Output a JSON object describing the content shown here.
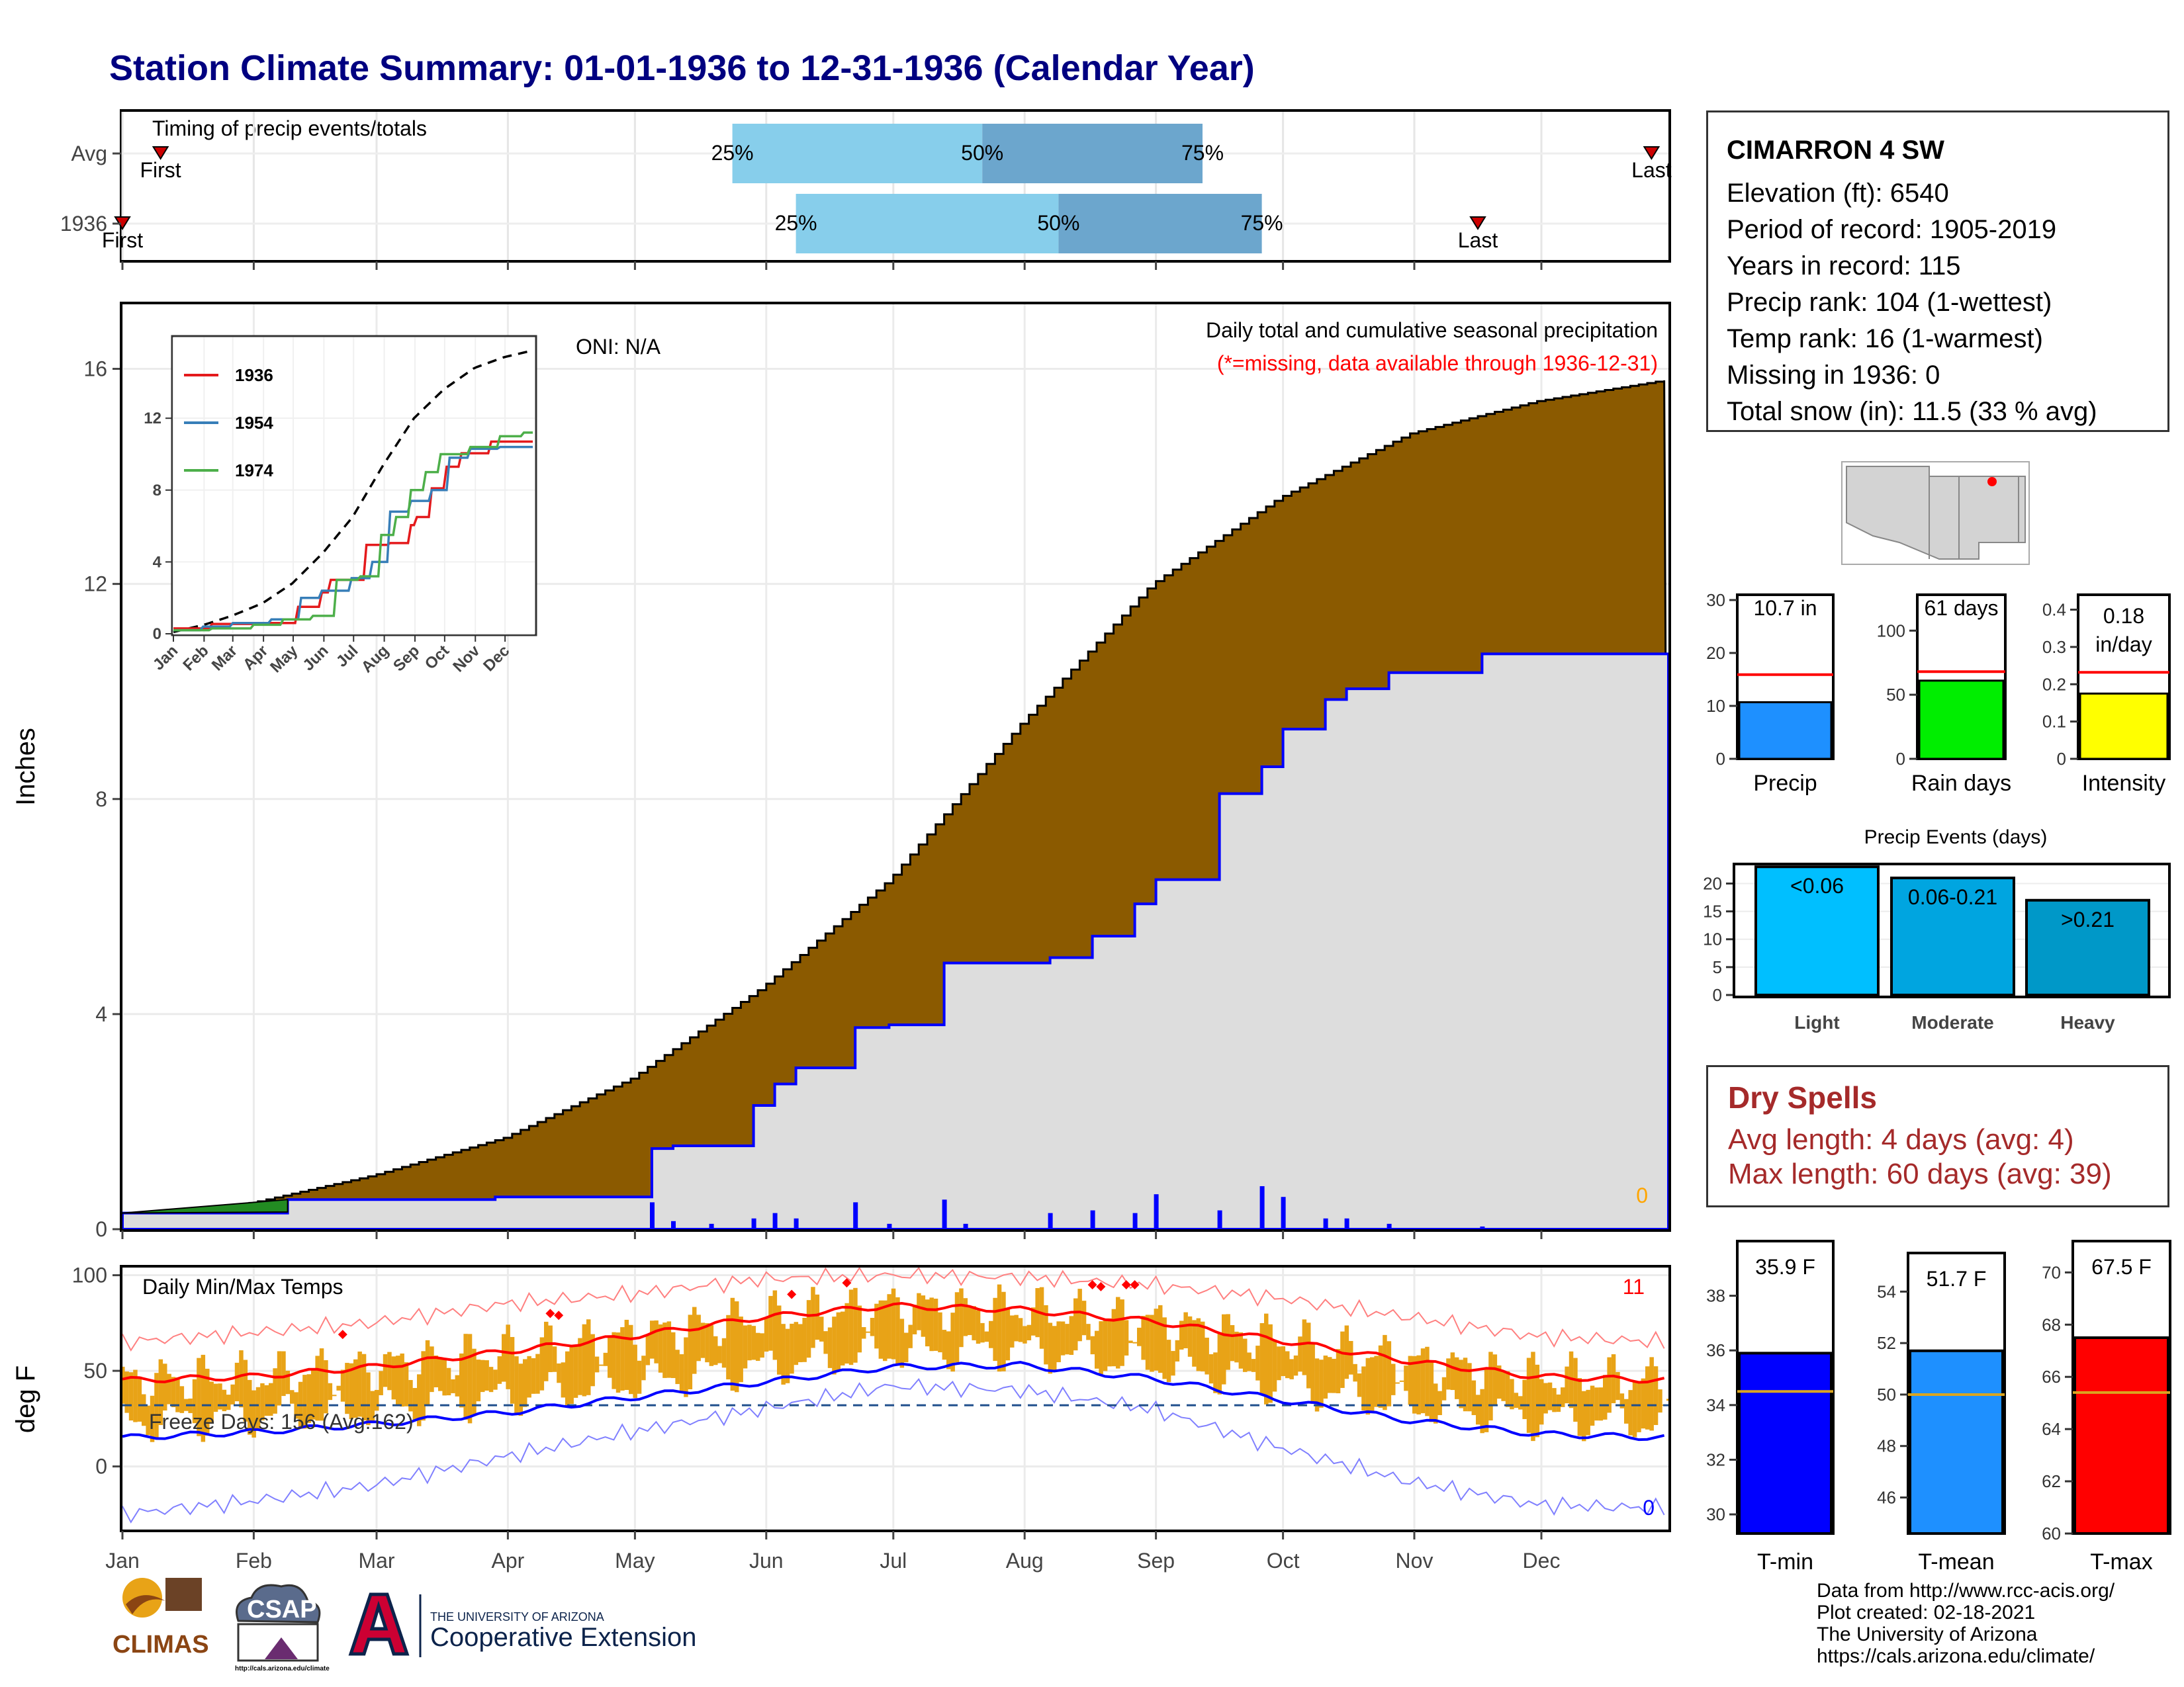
{
  "title": "Station Climate Summary: 01-01-1936 to 12-31-1936 (Calendar Year)",
  "station": {
    "name": "CIMARRON 4 SW",
    "lines": [
      "Elevation (ft): 6540",
      "Period of record: 1905-2019",
      "Years in record: 115",
      "Precip rank: 104 (1-wettest)",
      "Temp rank: 16 (1-warmest)",
      "Missing in 1936: 0",
      "Total snow (in): 11.5 (33 % avg)"
    ]
  },
  "dry_spells": {
    "title": "Dry Spells",
    "avg": "Avg length: 4 days (avg: 4)",
    "max": "Max length: 60 days (avg: 39)"
  },
  "credits": [
    "Data from http://www.rcc-acis.org/",
    "Plot created: 02-18-2021",
    "The University of Arizona",
    "https://cals.arizona.edu/climate/"
  ],
  "logos": {
    "climas": "CLIMAS",
    "csap": "CSAP",
    "csap_url": "http://cals.arizona.edu/climate",
    "ua_top": "THE UNIVERSITY OF ARIZONA",
    "ua_bottom": "Cooperative Extension"
  },
  "colors": {
    "title": "#000080",
    "cumulative_avg": "#8B5A00",
    "cumulative_1936": "#DDDDDD",
    "daily_precip": "#0000FF",
    "timing_light": "#87CEEB",
    "timing_dark": "#6CA6CD",
    "tmax_line": "#FF0000",
    "tmin_line": "#0000FF",
    "temp_bars": "#E8A317",
    "dry_spells": "#A52A2A"
  },
  "chart_data": [
    {
      "id": "timing",
      "type": "bar",
      "title": "Timing of precip events/totals",
      "rows": [
        {
          "label": "Avg",
          "first": "First",
          "last": "Last",
          "first_day": 10,
          "p25_day": 145,
          "p50_day": 204,
          "p75_day": 256,
          "last_day": 362
        },
        {
          "label": "1936",
          "first": "First",
          "last": "Last",
          "first_day": 1,
          "p25_day": 160,
          "p50_day": 222,
          "p75_day": 270,
          "last_day": 321
        }
      ],
      "pct_labels": [
        "25%",
        "50%",
        "75%"
      ]
    },
    {
      "id": "precip",
      "type": "area",
      "title": "Daily total and cumulative seasonal precipitation",
      "subtitle": "(*=missing, data available through 1936-12-31)",
      "oni": "ONI: N/A",
      "ylabel": "Inches",
      "ylim": [
        0,
        17.2
      ],
      "yticks": [
        0,
        4,
        8,
        12,
        16
      ],
      "months": [
        "Jan",
        "Feb",
        "Mar",
        "Apr",
        "May",
        "Jun",
        "Jul",
        "Aug",
        "Sep",
        "Oct",
        "Nov",
        "Dec"
      ],
      "missing_count": "0",
      "avg_cumulative": {
        "day": [
          1,
          32,
          60,
          91,
          121,
          152,
          182,
          213,
          244,
          274,
          305,
          335,
          366
        ],
        "value": [
          0.1,
          0.5,
          1.0,
          1.7,
          2.8,
          4.5,
          6.5,
          9.4,
          12.0,
          13.6,
          14.8,
          15.4,
          15.8
        ]
      },
      "cumulative_1936": {
        "day": [
          1,
          18,
          40,
          60,
          89,
          120,
          126,
          131,
          150,
          155,
          160,
          174,
          182,
          195,
          220,
          230,
          240,
          245,
          260,
          270,
          275,
          285,
          290,
          300,
          322,
          366
        ],
        "value": [
          0.3,
          0.3,
          0.55,
          0.55,
          0.6,
          0.6,
          1.5,
          1.55,
          2.3,
          2.7,
          3.0,
          3.75,
          3.8,
          4.95,
          5.05,
          5.45,
          6.05,
          6.5,
          8.1,
          8.6,
          9.3,
          9.85,
          10.05,
          10.35,
          10.7,
          10.7
        ]
      },
      "daily_1936": [
        {
          "day": 126,
          "value": 0.5
        },
        {
          "day": 131,
          "value": 0.15
        },
        {
          "day": 140,
          "value": 0.1
        },
        {
          "day": 150,
          "value": 0.2
        },
        {
          "day": 155,
          "value": 0.3
        },
        {
          "day": 160,
          "value": 0.2
        },
        {
          "day": 174,
          "value": 0.5
        },
        {
          "day": 182,
          "value": 0.1
        },
        {
          "day": 195,
          "value": 0.55
        },
        {
          "day": 200,
          "value": 0.1
        },
        {
          "day": 220,
          "value": 0.3
        },
        {
          "day": 230,
          "value": 0.35
        },
        {
          "day": 240,
          "value": 0.3
        },
        {
          "day": 245,
          "value": 0.65
        },
        {
          "day": 260,
          "value": 0.35
        },
        {
          "day": 270,
          "value": 0.8
        },
        {
          "day": 275,
          "value": 0.6
        },
        {
          "day": 285,
          "value": 0.2
        },
        {
          "day": 290,
          "value": 0.2
        },
        {
          "day": 300,
          "value": 0.1
        },
        {
          "day": 322,
          "value": 0.05
        }
      ]
    },
    {
      "id": "inset",
      "type": "line",
      "xticks": [
        "Jan",
        "Feb",
        "Mar",
        "Apr",
        "May",
        "Jun",
        "Jul",
        "Aug",
        "Sep",
        "Oct",
        "Nov",
        "Dec"
      ],
      "yticks": [
        0,
        4,
        8,
        12
      ],
      "ylim": [
        0,
        16.5
      ],
      "avg": {
        "day": [
          1,
          32,
          60,
          91,
          121,
          152,
          182,
          213,
          244,
          274,
          305,
          335,
          366
        ],
        "value": [
          0.1,
          0.5,
          1.0,
          1.7,
          2.8,
          4.5,
          6.5,
          9.4,
          12.0,
          13.6,
          14.8,
          15.4,
          15.8
        ]
      },
      "series": [
        {
          "name": "1936",
          "color": "#E41A1C",
          "day": [
            1,
            40,
            89,
            120,
            126,
            150,
            160,
            195,
            220,
            240,
            245,
            260,
            275,
            290,
            322,
            366
          ],
          "value": [
            0.3,
            0.55,
            0.6,
            0.6,
            1.5,
            2.3,
            3.0,
            4.95,
            5.05,
            6.05,
            6.5,
            8.1,
            9.3,
            10.05,
            10.7,
            10.7
          ]
        },
        {
          "name": "1954",
          "color": "#377EB8",
          "day": [
            1,
            30,
            60,
            100,
            130,
            150,
            180,
            200,
            220,
            240,
            260,
            280,
            300,
            330,
            366
          ],
          "value": [
            0.2,
            0.4,
            0.6,
            0.8,
            2.0,
            2.4,
            3.1,
            4.0,
            6.8,
            7.4,
            8.0,
            9.8,
            10.3,
            10.4,
            10.7
          ]
        },
        {
          "name": "1974",
          "color": "#4DAF4A",
          "day": [
            1,
            40,
            80,
            110,
            140,
            165,
            190,
            210,
            225,
            240,
            255,
            270,
            300,
            330,
            355,
            366
          ],
          "value": [
            0.2,
            0.3,
            0.5,
            0.8,
            1.0,
            3.0,
            3.2,
            5.5,
            6.5,
            8.0,
            9.0,
            10.0,
            10.4,
            11.0,
            11.2,
            12.5
          ]
        }
      ]
    },
    {
      "id": "temps",
      "type": "bar",
      "title": "Daily Min/Max Temps",
      "ylabel": "deg F",
      "ylim": [
        -33,
        104
      ],
      "yticks": [
        0,
        50,
        100
      ],
      "freeze_label": "Freeze Days: 156 (Avg:162)",
      "freeze_line": 32,
      "count_hot": "11",
      "count_cold": "0",
      "months": [
        "Jan",
        "Feb",
        "Mar",
        "Apr",
        "May",
        "Jun",
        "Jul",
        "Aug",
        "Sep",
        "Oct",
        "Nov",
        "Dec"
      ],
      "avg_tmax": {
        "day": [
          1,
          32,
          60,
          91,
          121,
          152,
          182,
          213,
          244,
          274,
          305,
          335,
          366
        ],
        "value": [
          45,
          47,
          52,
          60,
          68,
          78,
          84,
          82,
          76,
          66,
          55,
          47,
          45
        ]
      },
      "avg_tmin": {
        "day": [
          1,
          32,
          60,
          91,
          121,
          152,
          182,
          213,
          244,
          274,
          305,
          335,
          366
        ],
        "value": [
          15,
          18,
          22,
          28,
          36,
          44,
          52,
          53,
          46,
          35,
          24,
          17,
          15
        ]
      },
      "record_tmax": {
        "day": [
          1,
          32,
          60,
          91,
          121,
          152,
          182,
          213,
          244,
          274,
          305,
          335,
          366
        ],
        "value": [
          65,
          70,
          75,
          85,
          90,
          98,
          100,
          99,
          95,
          88,
          78,
          68,
          65
        ]
      },
      "record_tmin": {
        "day": [
          1,
          32,
          60,
          91,
          121,
          152,
          182,
          213,
          244,
          274,
          305,
          335,
          366
        ],
        "value": [
          -25,
          -18,
          -10,
          5,
          18,
          30,
          42,
          40,
          30,
          10,
          -8,
          -20,
          -22
        ]
      },
      "record_high_days": [
        {
          "day": 53,
          "value": 69
        },
        {
          "day": 102,
          "value": 80
        },
        {
          "day": 104,
          "value": 79
        },
        {
          "day": 159,
          "value": 90
        },
        {
          "day": 172,
          "value": 96
        },
        {
          "day": 230,
          "value": 95
        },
        {
          "day": 232,
          "value": 94
        },
        {
          "day": 238,
          "value": 95
        },
        {
          "day": 240,
          "value": 95
        }
      ]
    },
    {
      "id": "precip_bars",
      "type": "bar",
      "categories": [
        "Precip",
        "Rain days",
        "Intensity"
      ],
      "panels": [
        {
          "label": "Precip",
          "value": 10.7,
          "avg": 15.9,
          "text": "10.7 in",
          "ylim": [
            0,
            31
          ],
          "yticks": [
            0,
            10,
            20,
            30
          ],
          "color": "#1E90FF"
        },
        {
          "label": "Rain days",
          "value": 61,
          "avg": 68,
          "text": "61 days",
          "ylim": [
            0,
            128
          ],
          "yticks": [
            0,
            50,
            100
          ],
          "color": "#00EE00"
        },
        {
          "label": "Intensity",
          "value": 0.175,
          "avg": 0.232,
          "text": "0.18 in/day",
          "ylim": [
            0,
            0.44
          ],
          "yticks": [
            0.0,
            0.1,
            0.2,
            0.3,
            0.4
          ],
          "color": "#FFFF00"
        }
      ]
    },
    {
      "id": "events",
      "type": "bar",
      "title": "Precip Events (days)",
      "categories": [
        "Light",
        "Moderate",
        "Heavy"
      ],
      "values": [
        23,
        21,
        17
      ],
      "bar_labels": [
        "<0.06",
        "0.06-0.21",
        ">0.21"
      ],
      "colors": [
        "#00BFFF",
        "#00A5E0",
        "#0098C8"
      ],
      "ylim": [
        0,
        23.5
      ],
      "yticks": [
        0,
        5,
        10,
        15,
        20
      ]
    },
    {
      "id": "temp_bars",
      "type": "bar",
      "categories": [
        "T-min",
        "T-mean",
        "T-max"
      ],
      "panels": [
        {
          "label": "T-min",
          "value": 35.9,
          "avg": 34.5,
          "text": "35.9 F",
          "ylim": [
            29.3,
            40.0
          ],
          "yticks": [
            30,
            32,
            34,
            36,
            38
          ],
          "color": "#0000FF"
        },
        {
          "label": "T-mean",
          "value": 51.7,
          "avg": 50.0,
          "text": "51.7 F",
          "ylim": [
            44.6,
            55.5
          ],
          "yticks": [
            46,
            48,
            50,
            52,
            54
          ],
          "color": "#1E90FF"
        },
        {
          "label": "T-max",
          "value": 67.5,
          "avg": 65.4,
          "text": "67.5 F",
          "ylim": [
            60.0,
            71.2
          ],
          "yticks": [
            60,
            62,
            64,
            66,
            68,
            70
          ],
          "color": "#FF0000"
        }
      ]
    }
  ]
}
